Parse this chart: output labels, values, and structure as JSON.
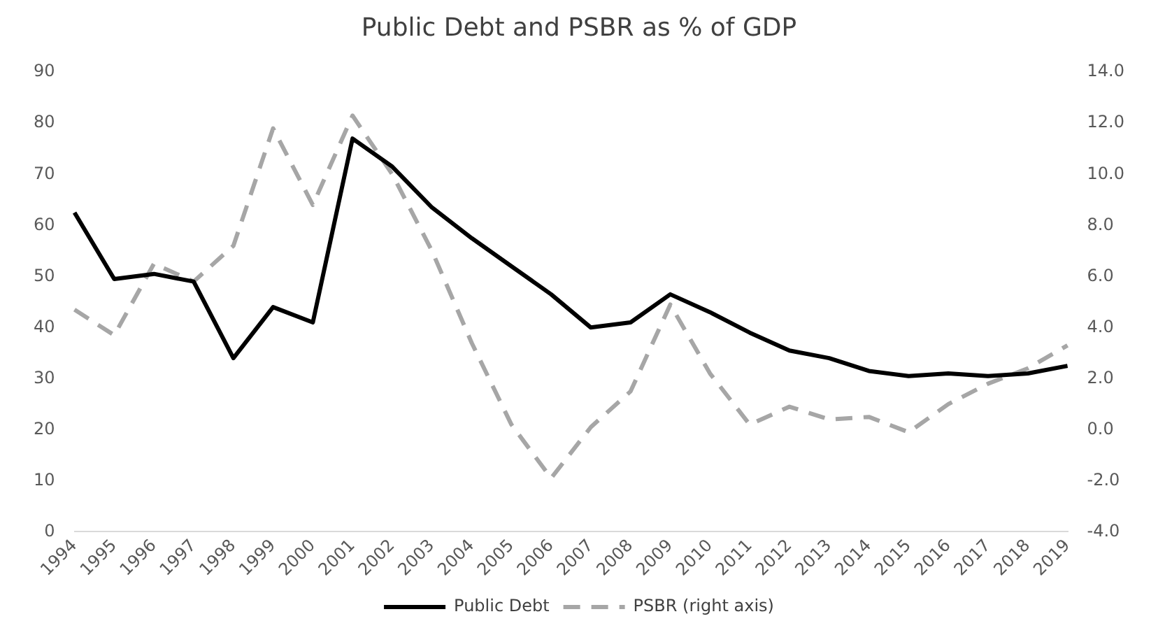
{
  "chart_data": {
    "type": "line",
    "title": "Public Debt and PSBR as % of GDP",
    "categories": [
      "1994",
      "1995",
      "1996",
      "1997",
      "1998",
      "1999",
      "2000",
      "2001",
      "2002",
      "2003",
      "2004",
      "2005",
      "2006",
      "2007",
      "2008",
      "2009",
      "2010",
      "2011",
      "2012",
      "2013",
      "2014",
      "2015",
      "2016",
      "2017",
      "2018",
      "2019"
    ],
    "series": [
      {
        "name": "Public Debt",
        "color": "#000000",
        "line_style": "solid",
        "values": [
          62.5,
          49.5,
          50.5,
          49,
          34,
          44,
          41,
          77,
          71.5,
          63.5,
          57.5,
          52,
          46.5,
          40,
          41,
          46.5,
          43,
          39,
          35.5,
          34,
          31.5,
          30.5,
          31,
          30.5,
          31,
          32.5
        ]
      },
      {
        "name": "PSBR (right axis)",
        "color": "#a6a6a6",
        "line_style": "dashed",
        "axis": "y2",
        "values": [
          4.7,
          3.7,
          6.5,
          5.8,
          7.2,
          11.8,
          8.8,
          12.3,
          10.0,
          7.0,
          3.4,
          0.2,
          -1.9,
          0.1,
          1.5,
          4.9,
          2.2,
          0.2,
          0.9,
          0.4,
          0.5,
          -0.1,
          1.0,
          1.8,
          2.4,
          3.3
        ]
      }
    ],
    "ylim": [
      0,
      90
    ],
    "yticks": [
      0,
      10,
      20,
      30,
      40,
      50,
      60,
      70,
      80,
      90
    ],
    "y2lim": [
      -4,
      14
    ],
    "y2ticks": [
      {
        "value": -4,
        "label": "-4.0"
      },
      {
        "value": -2,
        "label": "-2.0"
      },
      {
        "value": 0,
        "label": "0.0"
      },
      {
        "value": 2,
        "label": "2.0"
      },
      {
        "value": 4,
        "label": "4.0"
      },
      {
        "value": 6,
        "label": "6.0"
      },
      {
        "value": 8,
        "label": "8.0"
      },
      {
        "value": 10,
        "label": "10.0"
      },
      {
        "value": 12,
        "label": "12.0"
      },
      {
        "value": 14,
        "label": "14.0"
      }
    ],
    "grid": false,
    "legend": "bottom",
    "marker": "none"
  }
}
